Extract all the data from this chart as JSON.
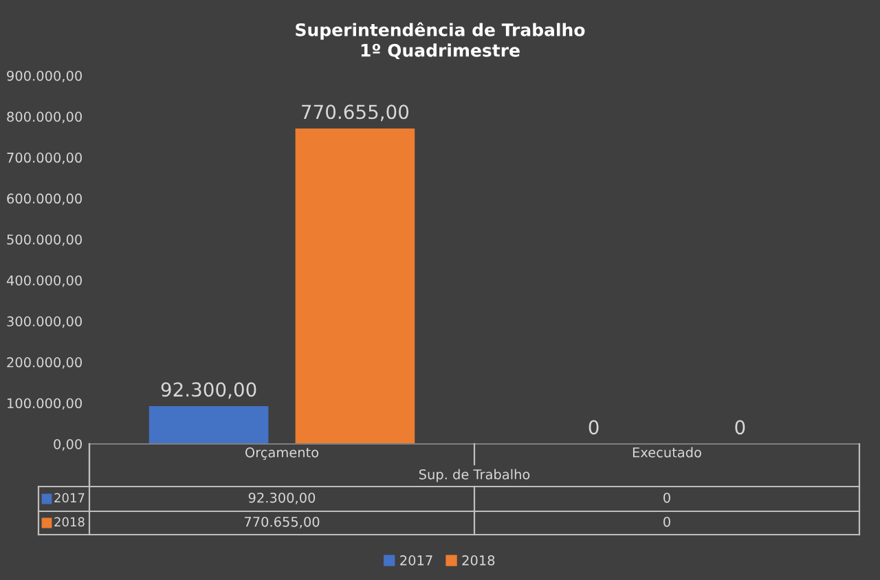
{
  "chart_data": {
    "type": "bar",
    "title": "Superintendência de Trabalho\n1º Quadrimestre",
    "categories": [
      "Orçamento",
      "Executado"
    ],
    "xlabel": "Sup. de Trabalho",
    "series": [
      {
        "name": "2017",
        "color": "#4472c4",
        "values": [
          92300,
          0
        ],
        "value_labels": [
          "92.300,00",
          "0"
        ]
      },
      {
        "name": "2018",
        "color": "#ed7d31",
        "values": [
          770655,
          0
        ],
        "value_labels": [
          "770.655,00",
          "0"
        ]
      }
    ],
    "ylim": [
      0,
      900000
    ],
    "yticks": [
      {
        "value": 0,
        "label": "0,00"
      },
      {
        "value": 100000,
        "label": "100.000,00"
      },
      {
        "value": 200000,
        "label": "200.000,00"
      },
      {
        "value": 300000,
        "label": "300.000,00"
      },
      {
        "value": 400000,
        "label": "400.000,00"
      },
      {
        "value": 500000,
        "label": "500.000,00"
      },
      {
        "value": 600000,
        "label": "600.000,00"
      },
      {
        "value": 700000,
        "label": "700.000,00"
      },
      {
        "value": 800000,
        "label": "800.000,00"
      },
      {
        "value": 900000,
        "label": "900.000,00"
      }
    ],
    "grid": false,
    "legend": "bottom"
  }
}
